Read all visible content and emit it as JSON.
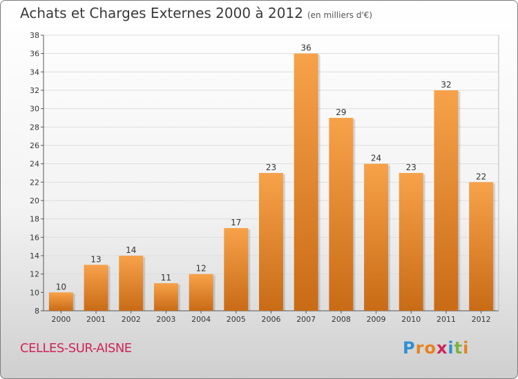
{
  "header": {
    "title": "Achats et Charges Externes 2000 à 2012",
    "unit": "(en milliers d'€)"
  },
  "footer": {
    "place": "CELLES-SUR-AISNE",
    "logo_letters": [
      "P",
      "r",
      "o",
      "x",
      "i",
      "t",
      "i"
    ],
    "logo_colors": [
      "#2e8fd1",
      "#e8821e",
      "#e8821e",
      "#d0245a",
      "#2e8fd1",
      "#7cb342",
      "#e8821e"
    ]
  },
  "chart_data": {
    "type": "bar",
    "categories": [
      "2000",
      "2001",
      "2002",
      "2003",
      "2004",
      "2005",
      "2006",
      "2007",
      "2008",
      "2009",
      "2010",
      "2011",
      "2012"
    ],
    "values": [
      10,
      13,
      14,
      11,
      12,
      17,
      23,
      36,
      29,
      24,
      23,
      32,
      22
    ],
    "ylim": [
      8,
      38
    ],
    "yticks": [
      8,
      10,
      12,
      14,
      16,
      18,
      20,
      22,
      24,
      26,
      28,
      30,
      32,
      34,
      36,
      38
    ],
    "grid": true,
    "bar_color_top": "#f7a24a",
    "bar_color_bottom": "#c96b16"
  }
}
